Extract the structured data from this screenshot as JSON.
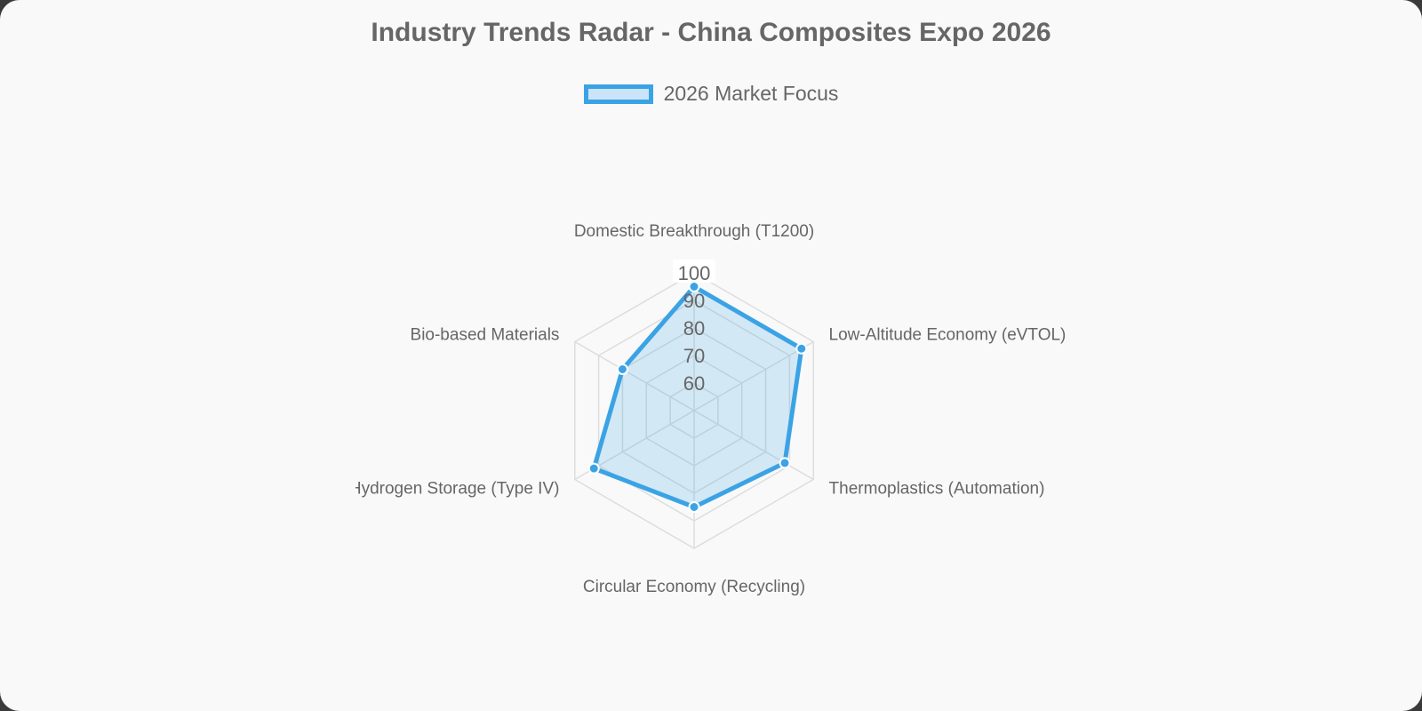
{
  "chart_data": {
    "type": "radar",
    "title": "Industry Trends Radar - China Composites Expo 2026",
    "categories": [
      "Domestic Breakthrough (T1200)",
      "Low-Altitude Economy (eVTOL)",
      "Thermoplastics (Automation)",
      "Circular Economy (Recycling)",
      "Hydrogen Storage (Type IV)",
      "Bio-based Materials"
    ],
    "series": [
      {
        "name": "2026 Market Focus",
        "values": [
          95,
          95,
          88,
          85,
          92,
          80
        ]
      }
    ],
    "r_range": [
      50,
      100
    ],
    "ticks": [
      60,
      70,
      80,
      90,
      100
    ],
    "grid": true,
    "legend_position": "top",
    "colors": {
      "line": "#3ba3e5",
      "fill": "rgba(59,163,229,0.2)",
      "grid": "#dddddd"
    }
  }
}
